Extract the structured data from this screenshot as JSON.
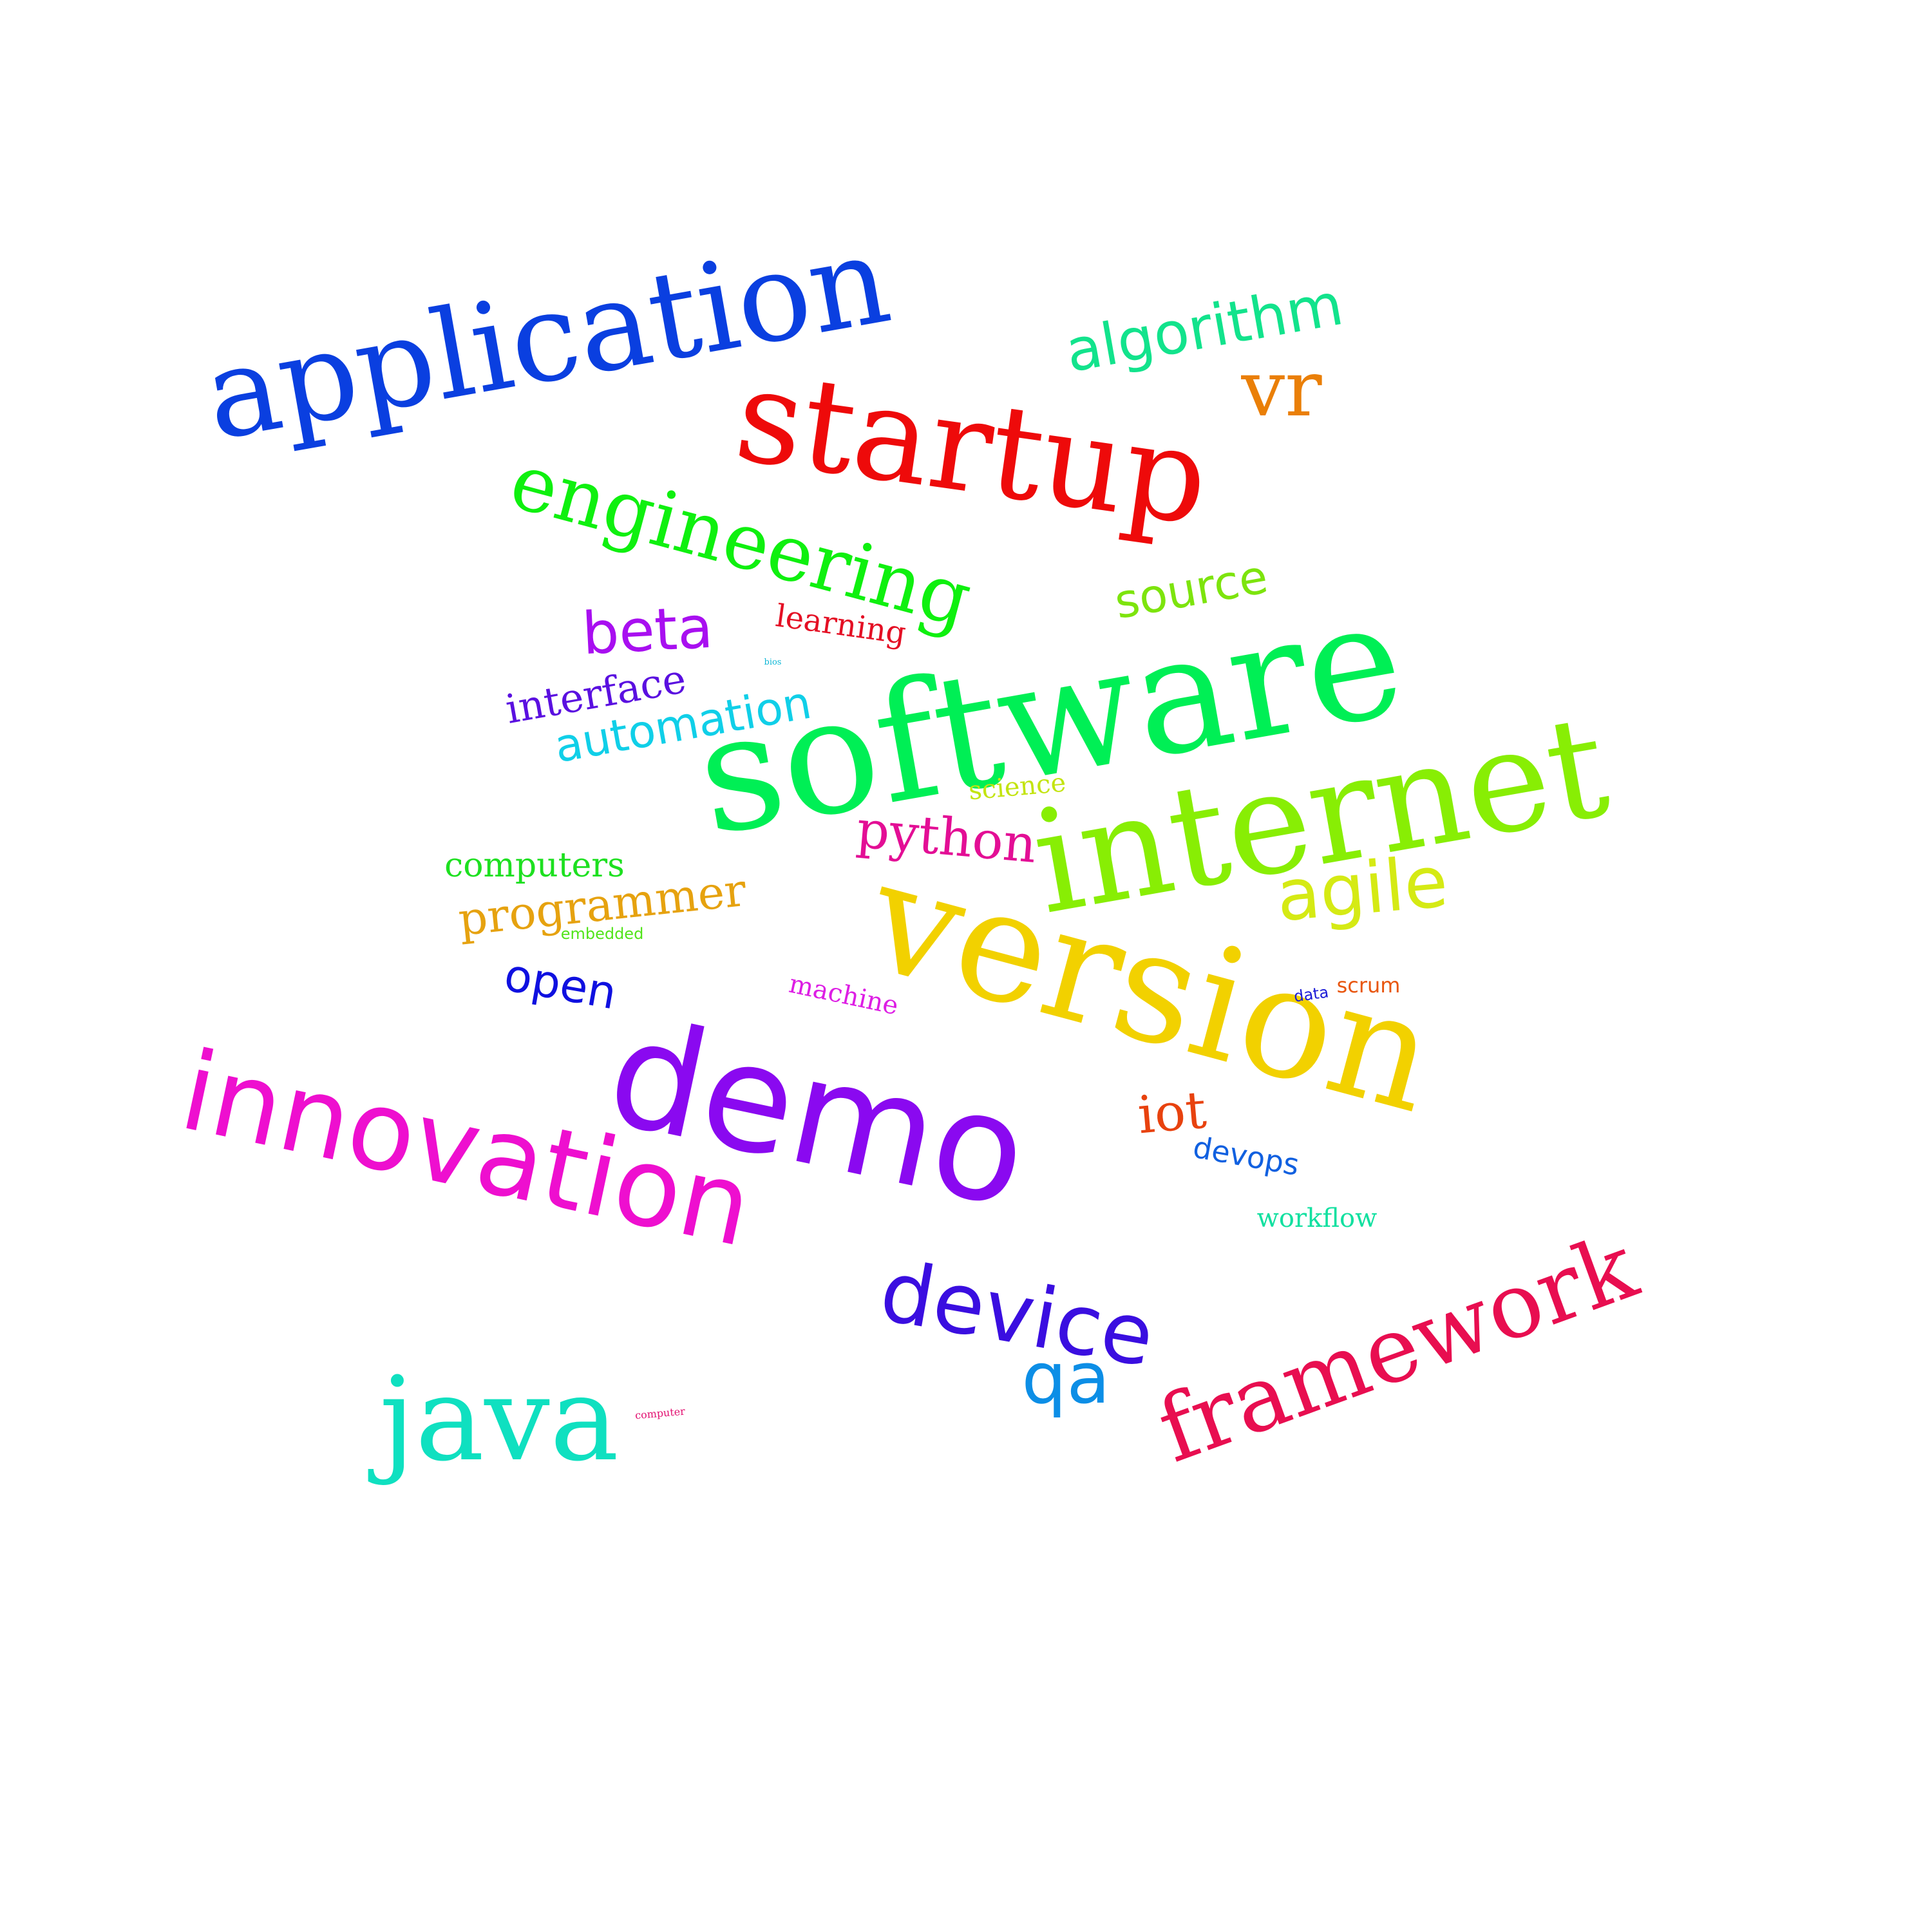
{
  "words": [
    {
      "text": "application",
      "color": "#0a3fe0"
    },
    {
      "text": "startup",
      "color": "#ee0a0a"
    },
    {
      "text": "algorithm",
      "color": "#12e38c"
    },
    {
      "text": "vr",
      "color": "#ea7f07"
    },
    {
      "text": "engineering",
      "color": "#0ff00f"
    },
    {
      "text": "software",
      "color": "#00ef55"
    },
    {
      "text": "source",
      "color": "#7de40d"
    },
    {
      "text": "beta",
      "color": "#a80ff0"
    },
    {
      "text": "learning",
      "color": "#e40f24"
    },
    {
      "text": "bios",
      "color": "#10b8d6"
    },
    {
      "text": "interface",
      "color": "#5a0fe0"
    },
    {
      "text": "automation",
      "color": "#10cfe8"
    },
    {
      "text": "internet",
      "color": "#88ee04"
    },
    {
      "text": "science",
      "color": "#c3e410"
    },
    {
      "text": "python",
      "color": "#e30e95"
    },
    {
      "text": "computers",
      "color": "#1de020"
    },
    {
      "text": "programmer",
      "color": "#e6a20f"
    },
    {
      "text": "agile",
      "color": "#d5ea14"
    },
    {
      "text": "version",
      "color": "#f2d100"
    },
    {
      "text": "embedded",
      "color": "#52e41b"
    },
    {
      "text": "open",
      "color": "#0f10e0"
    },
    {
      "text": "machine",
      "color": "#dd1ee4"
    },
    {
      "text": "data",
      "color": "#1b1bd6"
    },
    {
      "text": "scrum",
      "color": "#e8560e"
    },
    {
      "text": "demo",
      "color": "#8a09f0"
    },
    {
      "text": "innovation",
      "color": "#ee0fcf"
    },
    {
      "text": "iot",
      "color": "#e8420e"
    },
    {
      "text": "devops",
      "color": "#1060e0"
    },
    {
      "text": "workflow",
      "color": "#12e0a0"
    },
    {
      "text": "device",
      "color": "#3a0ee0"
    },
    {
      "text": "framework",
      "color": "#e80e50"
    },
    {
      "text": "qa",
      "color": "#0c8ee6"
    },
    {
      "text": "java",
      "color": "#0fe0c0"
    },
    {
      "text": "computer",
      "color": "#e20f70"
    }
  ]
}
